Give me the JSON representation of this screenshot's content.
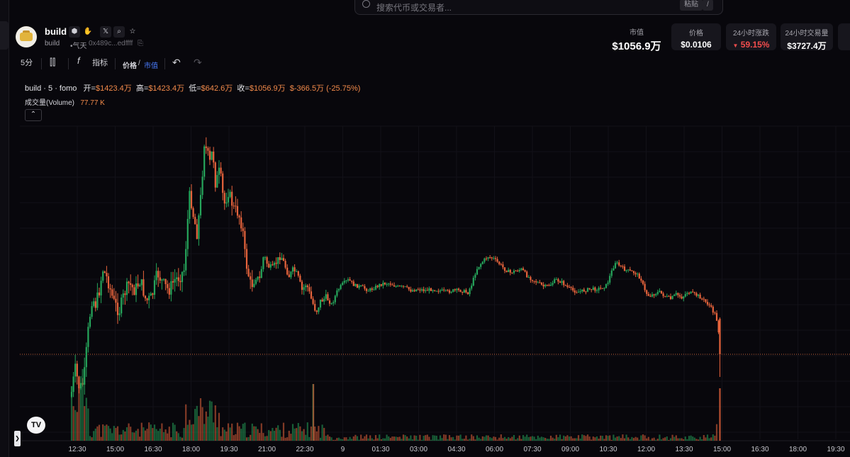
{
  "search": {
    "placeholder": "搜索代币或交易者...",
    "kbd1": "粘贴",
    "kbd2": "/"
  },
  "token": {
    "name": "build",
    "symbol": "build",
    "category": "•气天",
    "address": "0x489c...edffff"
  },
  "stats": {
    "market_cap": {
      "label": "市值",
      "value": "$1056.9万"
    },
    "price": {
      "label": "价格",
      "value": "$0.0106"
    },
    "change_24h": {
      "label": "24小时涨跌",
      "value": "59.15%",
      "color": "#f24d4d"
    },
    "volume_24h": {
      "label": "24小时交易量",
      "value": "$3727.4万"
    }
  },
  "toolbar": {
    "interval": "5分",
    "indicators": "指标",
    "price_toggle": "价格",
    "mcap_toggle": "市值"
  },
  "legend": {
    "title": "build · 5 · fomo",
    "open_label": "开=",
    "open": "$1423.4万",
    "high_label": "高=",
    "high": "$1423.4万",
    "low_label": "低=",
    "low": "$642.6万",
    "close_label": "收=",
    "close": "$1056.9万",
    "change": "$-366.5万 (-25.75%)",
    "volume_label": "成交量(Volume)",
    "volume": "77.77 K"
  },
  "tradingview": {
    "logo": "TV"
  },
  "colors": {
    "up": "#26a65b",
    "down": "#e8643c",
    "bg": "#08070c",
    "accent": "#4a7dff"
  },
  "chart_data": {
    "type": "candlestick",
    "x_ticks": [
      "12:30",
      "15:00",
      "16:30",
      "18:00",
      "19:30",
      "21:00",
      "22:30",
      "9",
      "01:30",
      "03:00",
      "04:30",
      "06:00",
      "07:30",
      "09:00",
      "10:30",
      "12:00",
      "13:30",
      "15:00",
      "16:30",
      "18:00",
      "19:30"
    ],
    "last_value": "1056.9万",
    "volume_last": "77.77 K"
  }
}
